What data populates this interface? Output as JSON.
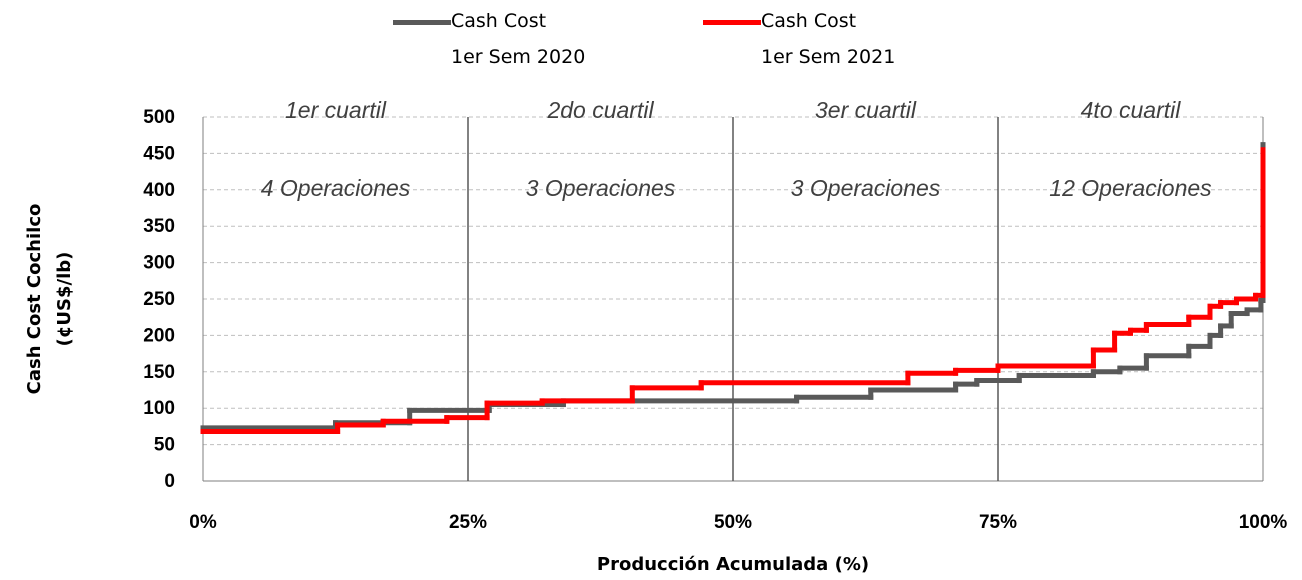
{
  "chart_data": {
    "type": "step",
    "x_label": "Producción Acumulada (%)",
    "y_label": [
      "Cash Cost Cochilco",
      "(¢US$/lb)"
    ],
    "quartiles": [
      {
        "label": "1er cuartil",
        "operations": "4 Operaciones"
      },
      {
        "label": "2do cuartil",
        "operations": "3 Operaciones"
      },
      {
        "label": "3er cuartil",
        "operations": "3 Operaciones"
      },
      {
        "label": "4to cuartil",
        "operations": "12 Operaciones"
      }
    ],
    "series": [
      {
        "name": "Cash Cost\n1er Sem 2020",
        "color": "#595959",
        "x": [
          0,
          12.5,
          19.5,
          27,
          34,
          56,
          63,
          71,
          73,
          77,
          84,
          86.5,
          89,
          93,
          95,
          96,
          97,
          98.5,
          99.8,
          100
        ],
        "values": [
          73,
          80,
          97,
          105,
          110,
          115,
          125,
          133,
          138,
          145,
          150,
          155,
          172,
          185,
          200,
          213,
          230,
          235,
          248,
          462
        ]
      },
      {
        "name": "Cash Cost\n1er Sem 2021",
        "color": "#ff0000",
        "x": [
          0,
          12.7,
          17,
          23,
          26.8,
          32,
          40.5,
          47,
          66.5,
          71,
          75,
          84,
          86,
          87.5,
          89,
          93,
          95,
          96,
          97.5,
          99.3,
          100
        ],
        "values": [
          68,
          77,
          82,
          87,
          107,
          110,
          128,
          135,
          148,
          152,
          158,
          180,
          203,
          207,
          215,
          225,
          240,
          245,
          250,
          255,
          455
        ]
      }
    ],
    "xlim": [
      0,
      100
    ],
    "xticks": [
      {
        "value": 0,
        "label": "0%"
      },
      {
        "value": 25,
        "label": "25%"
      },
      {
        "value": 50,
        "label": "50%"
      },
      {
        "value": 75,
        "label": "75%"
      },
      {
        "value": 100,
        "label": "100%"
      }
    ],
    "ylim": [
      0,
      500
    ],
    "yticks": [
      0,
      50,
      100,
      150,
      200,
      250,
      300,
      350,
      400,
      450,
      500
    ],
    "grid": true
  }
}
